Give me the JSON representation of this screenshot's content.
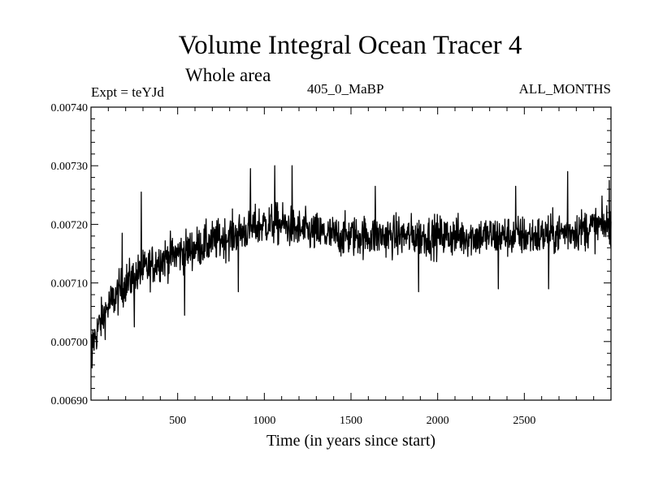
{
  "chart_data": {
    "type": "line",
    "title": "Volume Integral Ocean Tracer 4",
    "subtitle": "Whole area",
    "experiment_label": "Expt = teYJd",
    "center_label": "405_0_MaBP",
    "right_label": "ALL_MONTHS",
    "xlabel": "Time (in years since start)",
    "ylabel": "",
    "xlim": [
      0,
      3000
    ],
    "ylim": [
      0.0069,
      0.0074
    ],
    "xticks": [
      500,
      1000,
      1500,
      2000,
      2500
    ],
    "xtick_labels": [
      "500",
      "1000",
      "1500",
      "2000",
      "2500"
    ],
    "yticks": [
      0.0069,
      0.007,
      0.0071,
      0.0072,
      0.0073,
      0.0074
    ],
    "ytick_labels": [
      "0.00690",
      "0.00700",
      "0.00710",
      "0.00720",
      "0.00730",
      "0.00740"
    ],
    "series": [
      {
        "name": "Volume Integral Ocean Tracer 4",
        "color": "#000000",
        "trend": {
          "x": [
            0,
            50,
            100,
            200,
            300,
            400,
            500,
            600,
            700,
            800,
            900,
            1000,
            1100,
            1200,
            1400,
            1600,
            1800,
            2000,
            2200,
            2400,
            2600,
            2800,
            3000
          ],
          "y": [
            0.00699,
            0.00703,
            0.00706,
            0.0071,
            0.00712,
            0.00714,
            0.00715,
            0.00716,
            0.00717,
            0.00718,
            0.00719,
            0.0072,
            0.0072,
            0.00719,
            0.00718,
            0.00718,
            0.00718,
            0.00718,
            0.00718,
            0.00718,
            0.00718,
            0.00719,
            0.0072
          ]
        },
        "noise_amplitude": 2.5e-05,
        "peaks": [
          {
            "x": 180,
            "y": 0.007185
          },
          {
            "x": 290,
            "y": 0.007255
          },
          {
            "x": 920,
            "y": 0.007295
          },
          {
            "x": 1060,
            "y": 0.0073
          },
          {
            "x": 1160,
            "y": 0.0073
          },
          {
            "x": 1640,
            "y": 0.007265
          },
          {
            "x": 2450,
            "y": 0.007265
          },
          {
            "x": 2750,
            "y": 0.00729
          },
          {
            "x": 2990,
            "y": 0.007275
          }
        ],
        "troughs": [
          {
            "x": 5,
            "y": 0.006955
          },
          {
            "x": 250,
            "y": 0.007025
          },
          {
            "x": 540,
            "y": 0.007045
          },
          {
            "x": 850,
            "y": 0.007085
          },
          {
            "x": 1890,
            "y": 0.007085
          },
          {
            "x": 2350,
            "y": 0.00709
          },
          {
            "x": 2640,
            "y": 0.00709
          }
        ]
      }
    ]
  }
}
